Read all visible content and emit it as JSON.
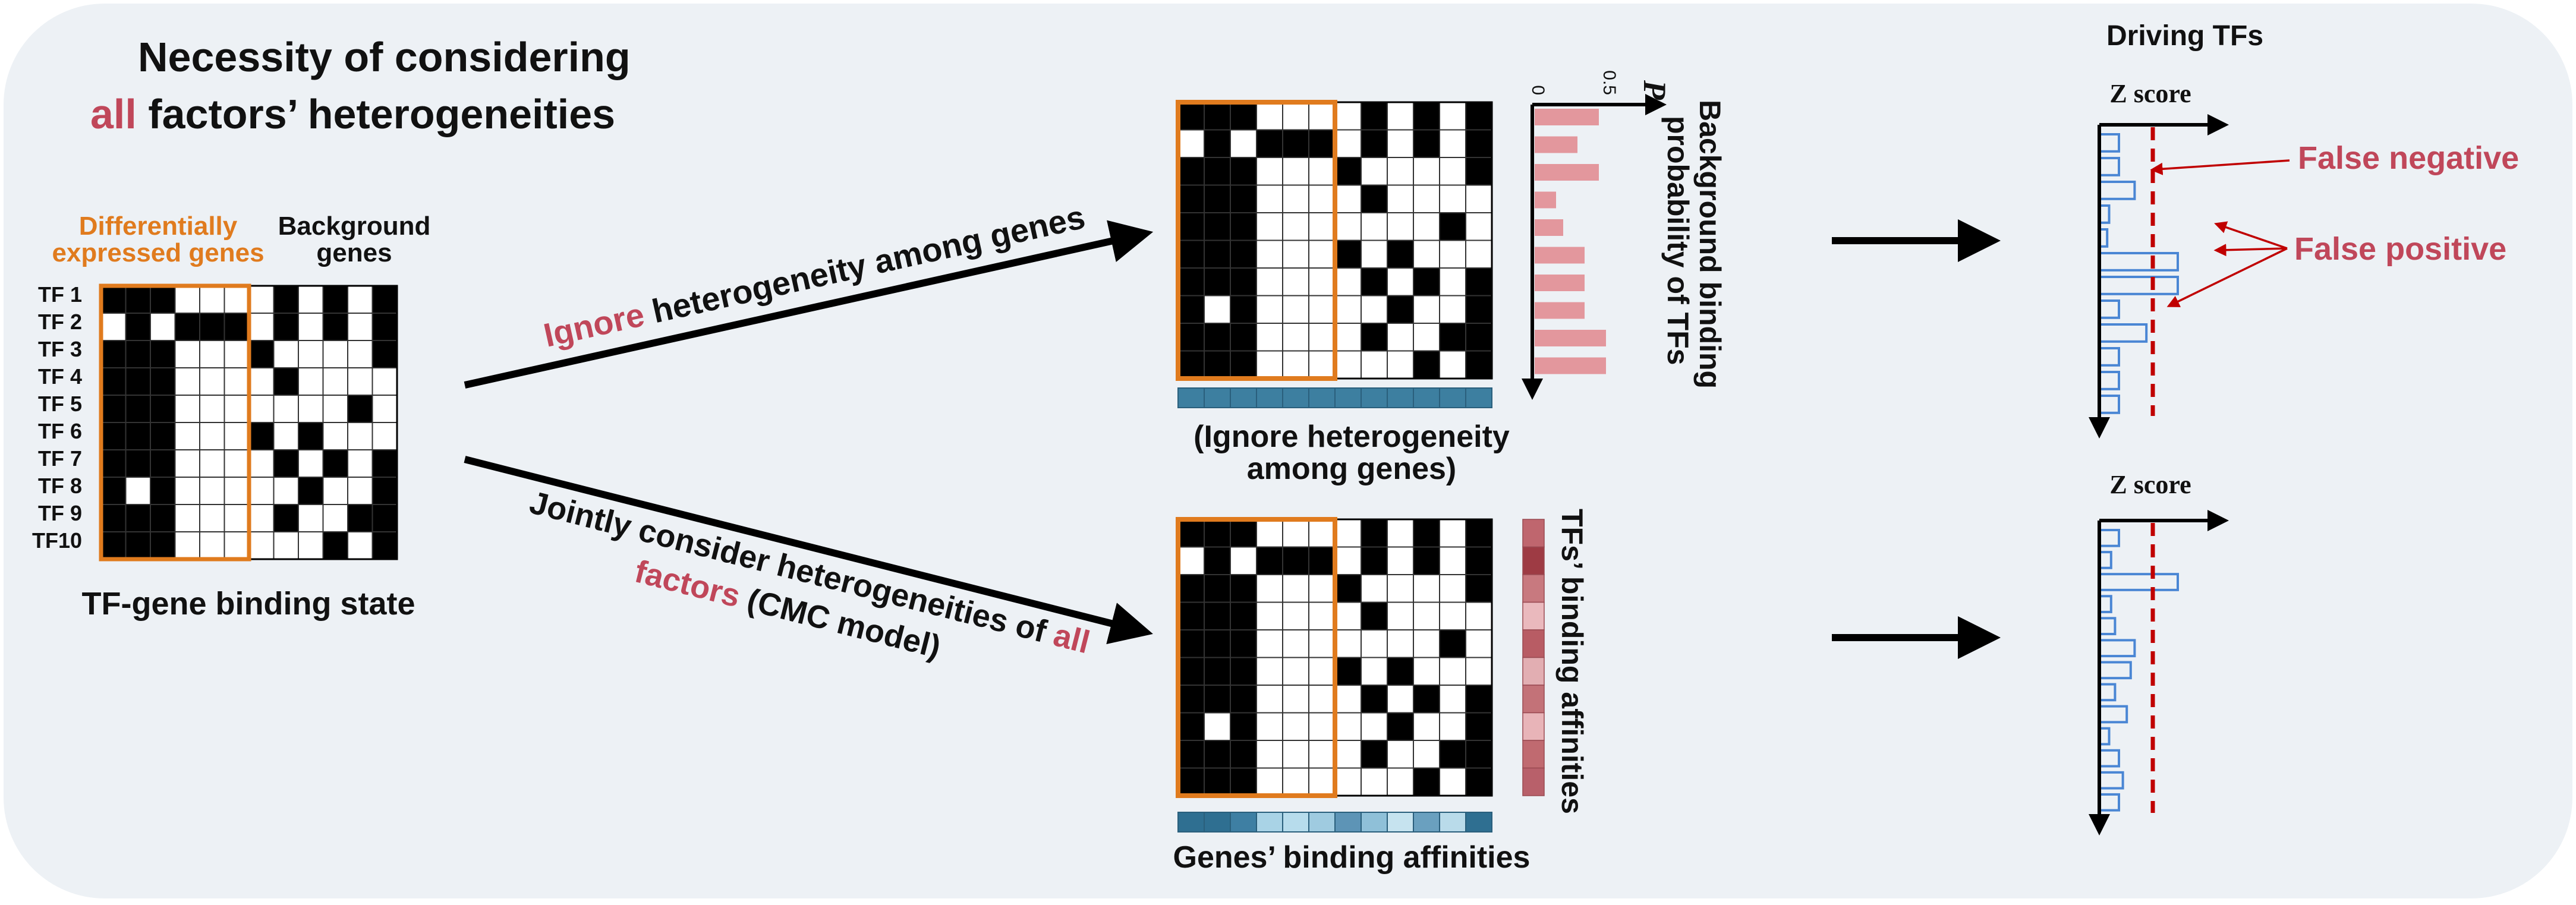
{
  "colors": {
    "panel_bg": "#edf1f5",
    "accent_red": "#c0475a",
    "orange": "#e07b1e",
    "hist_blue": "#4a86d4",
    "dashed_red": "#c00000",
    "bar_pink": "#e3979d",
    "gene_teal": "#3d7fa0"
  },
  "title": {
    "line1": "Necessity of considering",
    "line2_red": "all",
    "line2_rest": " factors’ heterogeneities"
  },
  "left_matrix": {
    "header_de": [
      "Differentially",
      "expressed genes"
    ],
    "header_bg": [
      "Background",
      "genes"
    ],
    "tf_labels": [
      "TF 1",
      "TF 2",
      "TF 3",
      "TF 4",
      "TF 5",
      "TF 6",
      "TF 7",
      "TF 8",
      "TF 9",
      "TF10"
    ],
    "caption": "TF-gene binding state",
    "grid": [
      [
        1,
        1,
        1,
        0,
        0,
        0,
        0,
        1,
        0,
        1,
        0,
        1
      ],
      [
        0,
        1,
        0,
        1,
        1,
        1,
        0,
        1,
        0,
        1,
        0,
        1
      ],
      [
        1,
        1,
        1,
        0,
        0,
        0,
        1,
        0,
        0,
        0,
        0,
        1
      ],
      [
        1,
        1,
        1,
        0,
        0,
        0,
        0,
        1,
        0,
        0,
        0,
        0
      ],
      [
        1,
        1,
        1,
        0,
        0,
        0,
        0,
        0,
        0,
        0,
        1,
        0
      ],
      [
        1,
        1,
        1,
        0,
        0,
        0,
        1,
        0,
        1,
        0,
        0,
        0
      ],
      [
        1,
        1,
        1,
        0,
        0,
        0,
        0,
        1,
        0,
        1,
        0,
        1
      ],
      [
        1,
        0,
        1,
        0,
        0,
        0,
        0,
        0,
        1,
        0,
        0,
        1
      ],
      [
        1,
        1,
        1,
        0,
        0,
        0,
        0,
        1,
        0,
        0,
        1,
        1
      ],
      [
        1,
        1,
        1,
        0,
        0,
        0,
        0,
        0,
        0,
        1,
        0,
        1
      ]
    ]
  },
  "arrow_top_label": {
    "red": "Ignore",
    "rest": " heterogeneity among genes"
  },
  "arrow_bottom_label": {
    "line1": "Jointly consider heterogeneities of",
    "line1_red": " all",
    "line2_red": "factors",
    "line2_rest": " (CMC model)"
  },
  "top_panel": {
    "prob_axis_label": "P",
    "prob_ticks": [
      "0",
      "0.5"
    ],
    "prob_values": [
      0.45,
      0.3,
      0.45,
      0.15,
      0.2,
      0.35,
      0.35,
      0.35,
      0.5,
      0.5
    ],
    "right_label": [
      "Background binding",
      "probability of TFs"
    ],
    "caption": [
      "(Ignore heterogeneity",
      "among genes)"
    ]
  },
  "bottom_panel": {
    "right_label": "TFs’ binding affinities",
    "tf_affinity_colors": [
      "#bf666e",
      "#9e3b44",
      "#c8797f",
      "#eab9bd",
      "#b85c64",
      "#e2aeb2",
      "#c37278",
      "#e8b4b8",
      "#c06a70",
      "#b8606a"
    ],
    "gene_affinity_colors": [
      "#2f6f91",
      "#2f6f91",
      "#3e7fa3",
      "#a9d3e6",
      "#b7dcec",
      "#9fcbe0",
      "#5d94b6",
      "#8fc0d8",
      "#c6e3ef",
      "#6aa0bf",
      "#b9dbea",
      "#2f6f91"
    ],
    "caption": "Genes’ binding affinities"
  },
  "right": {
    "title": "Driving TFs",
    "top_axis_label": "Z score",
    "bottom_axis_label": "Z score",
    "false_negative": "False negative",
    "false_positive": "False positive",
    "top_z_values": [
      1.0,
      1.0,
      1.8,
      0.5,
      0.4,
      4.0,
      4.0,
      1.0,
      2.4,
      1.0,
      1.0,
      1.0
    ],
    "bottom_z_values": [
      1.0,
      0.6,
      4.0,
      0.6,
      0.8,
      1.8,
      1.6,
      0.8,
      1.4,
      0.5,
      1.0,
      1.2,
      1.0
    ]
  }
}
